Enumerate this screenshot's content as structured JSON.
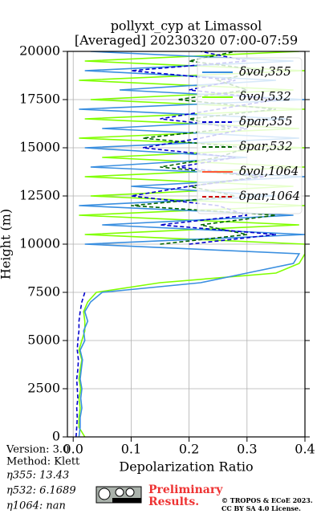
{
  "chart_data": {
    "type": "line",
    "title": "pollyxt_cyp at Limassol",
    "subtitle": "[Averaged] 20230320 07:00-07:59",
    "x_label": "Depolarization Ratio",
    "y_label": "Height (m)",
    "xlim": [
      -0.01,
      0.4
    ],
    "xticks": [
      {
        "value": 0,
        "label": "0.0"
      },
      0.1,
      0.2,
      0.3,
      0.4
    ],
    "ylim": [
      0,
      20000
    ],
    "yticks": [
      0,
      2500,
      5000,
      7500,
      10000,
      12500,
      15000,
      17500,
      20000
    ],
    "grid": true,
    "legend": "upper right",
    "y": [
      0,
      500,
      1000,
      1500,
      2000,
      2500,
      3000,
      3500,
      4000,
      4500,
      5000,
      5500,
      6000,
      6500,
      7000,
      7500,
      8000,
      8500,
      9000,
      9500,
      10000,
      10500,
      11000,
      11500,
      12000,
      12500,
      13000,
      13500,
      14000,
      14500,
      15000,
      15500,
      16000,
      16500,
      17000,
      17500,
      18000,
      18500,
      19000,
      19500,
      20000
    ],
    "series": [
      {
        "name": "δvol,355",
        "color": "#3a8fe0",
        "dashed": false,
        "values": [
          0.01,
          0.012,
          0.012,
          0.015,
          0.013,
          0.015,
          0.012,
          0.014,
          0.016,
          0.012,
          0.02,
          0.018,
          0.025,
          0.02,
          0.03,
          0.05,
          0.22,
          0.3,
          0.38,
          0.39,
          0.02,
          0.4,
          0.05,
          0.38,
          0.01,
          0.35,
          0.1,
          0.4,
          0.03,
          0.3,
          0.02,
          0.39,
          0.05,
          0.37,
          0.01,
          0.4,
          0.08,
          0.35,
          0.02,
          0.38,
          0.03
        ]
      },
      {
        "name": "δvol,532",
        "color": "#80ff00",
        "dashed": false,
        "values": [
          0.02,
          0.01,
          0.01,
          0.012,
          0.01,
          0.013,
          0.01,
          0.012,
          0.015,
          0.01,
          0.015,
          0.02,
          0.02,
          0.018,
          0.025,
          0.04,
          0.15,
          0.35,
          0.39,
          0.4,
          0.4,
          0.02,
          0.39,
          0.01,
          0.4,
          0.03,
          0.38,
          0.02,
          0.4,
          0.05,
          0.4,
          0.01,
          0.39,
          0.02,
          0.4,
          0.03,
          0.38,
          0.01,
          0.4,
          0.02,
          0.39
        ]
      },
      {
        "name": "δpar,355",
        "color": "#0000cc",
        "dashed": true,
        "values": [
          0.005,
          0.006,
          0.007,
          0.006,
          0.008,
          0.007,
          0.006,
          0.008,
          0.009,
          0.007,
          0.008,
          0.01,
          0.01,
          0.012,
          0.015,
          0.02,
          null,
          null,
          null,
          null,
          0.2,
          0.35,
          0.15,
          0.3,
          0.25,
          0.1,
          0.2,
          0.33,
          0.18,
          0.28,
          0.12,
          0.22,
          0.3,
          0.15,
          0.25,
          0.35,
          0.2,
          0.28,
          0.1,
          0.3,
          0.22
        ]
      },
      {
        "name": "δpar,532",
        "color": "#006400",
        "dashed": true,
        "values": [
          null,
          null,
          null,
          null,
          null,
          null,
          null,
          null,
          null,
          null,
          null,
          null,
          null,
          null,
          null,
          null,
          null,
          null,
          null,
          null,
          0.15,
          0.3,
          0.22,
          0.35,
          0.1,
          0.28,
          0.2,
          0.32,
          0.15,
          0.25,
          0.3,
          0.12,
          0.27,
          0.2,
          0.35,
          0.18,
          0.3,
          0.25,
          0.33,
          0.2,
          0.28
        ]
      },
      {
        "name": "δvol,1064",
        "color": "#ff5a36",
        "dashed": false,
        "values": [
          null,
          null,
          null,
          null,
          null,
          null,
          null,
          null,
          null,
          null,
          null,
          null,
          null,
          null,
          null,
          null,
          null,
          null,
          null,
          null,
          null,
          null,
          null,
          null,
          null,
          null,
          null,
          null,
          null,
          null,
          null,
          null,
          null,
          null,
          null,
          null,
          null,
          null,
          null,
          null,
          null
        ]
      },
      {
        "name": "δpar,1064",
        "color": "#cc0000",
        "dashed": true,
        "values": [
          null,
          null,
          null,
          null,
          null,
          null,
          null,
          null,
          null,
          null,
          null,
          null,
          null,
          null,
          null,
          null,
          null,
          null,
          null,
          null,
          null,
          null,
          null,
          null,
          null,
          null,
          null,
          null,
          null,
          null,
          null,
          null,
          null,
          null,
          null,
          null,
          null,
          null,
          null,
          null,
          null
        ]
      }
    ],
    "annotations": [
      "Version: 3.0",
      "Method: Klett",
      "η355:  13.43",
      "η532: 6.1689",
      "η1064:    nan",
      "Preliminary",
      "Results.",
      "© TROPOS & ECoE 2023.",
      "CC BY SA 4.0 License."
    ]
  }
}
